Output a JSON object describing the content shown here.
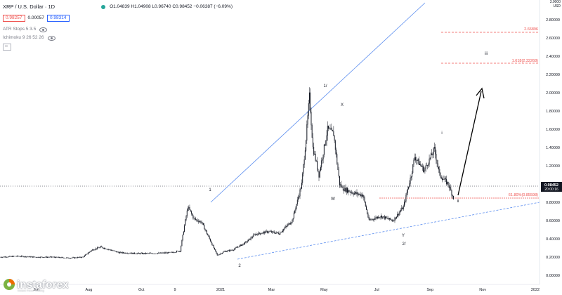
{
  "header": {
    "title": "XRP / U.S. Dollar · 1D",
    "ohlc": "O1.04839 H1.04908 L0.96740 C0.98452 −0.06387 (−6.09%)",
    "sell_price": "0.98257",
    "spread": "0.00057",
    "buy_price": "0.98314",
    "indicators": [
      "ATR Stops 5 3.5",
      "Ichimoku 9 26 52 26"
    ]
  },
  "price_axis": {
    "top_label": "3.0000\nUSD",
    "ticks": [
      "2.80000",
      "2.60000",
      "2.40000",
      "2.20000",
      "2.00000",
      "1.80000",
      "1.60000",
      "1.40000",
      "1.20000",
      "1.00000",
      "0.80000",
      "0.60000",
      "0.40000",
      "0.20000",
      "0.00000"
    ],
    "current_price": "0.98452",
    "countdown": "20:00:16"
  },
  "time_axis": {
    "ticks": [
      "Jun",
      "Aug",
      "Oct",
      "9",
      "2021",
      "Mar",
      "May",
      "Jul",
      "Sep",
      "Nov",
      "2022"
    ]
  },
  "annotations": {
    "wave_labels": [
      "1",
      "2",
      "1/",
      "X",
      "W",
      "Y",
      "2/",
      "i",
      "ii",
      "iii"
    ],
    "fib_levels": [
      "2.66896",
      "1.618(2.32268)",
      "61.80%(0.85598)"
    ]
  },
  "branding": {
    "name": "instaforex",
    "tagline": "Instant Forex Trading"
  },
  "colors": {
    "candles": "#131722",
    "channel": "#5b8def",
    "fib": "#ef5350",
    "arrow": "#000000",
    "price_label_bg": "#131722",
    "logo_green": "#7cb342",
    "logo_orange": "#ef6c00"
  },
  "chart_data": {
    "type": "line",
    "symbol": "XRP / U.S. Dollar",
    "timeframe": "1D",
    "ylim": [
      0,
      3.0
    ],
    "series": [
      {
        "x": [
          "2020-04-20",
          "2020-05-10",
          "2020-06-01",
          "2020-06-20",
          "2020-07-10",
          "2020-07-25",
          "2020-08-05",
          "2020-08-15",
          "2020-09-05",
          "2020-09-25",
          "2020-10-15",
          "2020-11-05",
          "2020-11-15",
          "2020-11-21",
          "2020-11-24",
          "2020-12-01",
          "2020-12-10",
          "2020-12-20",
          "2020-12-28",
          "2021-01-05",
          "2021-01-15",
          "2021-01-30",
          "2021-02-10",
          "2021-02-25",
          "2021-03-10",
          "2021-03-25",
          "2021-04-05",
          "2021-04-10",
          "2021-04-14",
          "2021-04-18",
          "2021-04-25",
          "2021-05-05",
          "2021-05-12",
          "2021-05-19",
          "2021-05-23",
          "2021-06-05",
          "2021-06-15",
          "2021-06-22",
          "2021-07-05",
          "2021-07-20",
          "2021-08-01",
          "2021-08-10",
          "2021-08-14",
          "2021-08-25",
          "2021-09-06",
          "2021-09-12",
          "2021-09-22",
          "2021-09-28"
        ],
        "values": [
          0.2,
          0.21,
          0.2,
          0.2,
          0.19,
          0.2,
          0.28,
          0.31,
          0.25,
          0.24,
          0.24,
          0.25,
          0.27,
          0.6,
          0.75,
          0.62,
          0.58,
          0.38,
          0.22,
          0.26,
          0.28,
          0.36,
          0.45,
          0.48,
          0.46,
          0.6,
          1.0,
          1.5,
          1.96,
          1.4,
          1.1,
          1.6,
          1.55,
          1.0,
          0.95,
          0.9,
          0.88,
          0.6,
          0.65,
          0.6,
          0.75,
          1.1,
          1.3,
          1.15,
          1.38,
          1.1,
          1.0,
          0.85
        ]
      }
    ]
  }
}
